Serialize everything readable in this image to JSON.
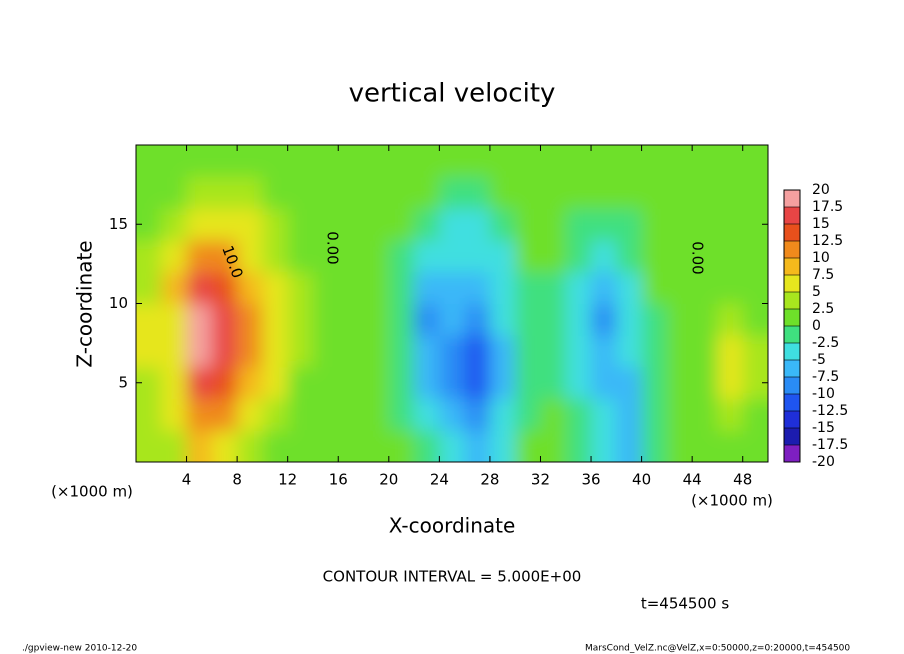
{
  "chart_data": {
    "type": "heatmap",
    "title": "vertical velocity",
    "xlabel": "X-coordinate",
    "ylabel": "Z-coordinate",
    "x_unit": "(×1000 m)",
    "x_unit_right": "(×1000 m)",
    "xlim": [
      0,
      50
    ],
    "ylim": [
      0,
      20
    ],
    "xticks": [
      4,
      8,
      12,
      16,
      20,
      24,
      28,
      32,
      36,
      40,
      44,
      48
    ],
    "yticks": [
      5,
      10,
      15
    ],
    "x": [
      1,
      3,
      5,
      7,
      9,
      11,
      13,
      15,
      17,
      19,
      21,
      23,
      25,
      27,
      29,
      31,
      33,
      35,
      37,
      39,
      41,
      43,
      45,
      47,
      49
    ],
    "y": [
      1,
      3,
      5,
      7,
      9,
      11,
      13,
      15,
      17,
      19
    ],
    "z": [
      [
        3,
        4,
        8,
        6,
        4,
        2,
        1,
        0,
        0,
        1,
        0,
        -2,
        -4,
        -6,
        -3,
        0,
        1,
        -1,
        -3,
        -6,
        -2,
        0,
        1,
        2,
        1
      ],
      [
        3,
        5,
        12,
        10,
        6,
        4,
        2,
        0,
        1,
        1,
        -1,
        -4,
        -6,
        -9,
        -4,
        -1,
        0,
        -2,
        -5,
        -7,
        -2,
        0,
        1,
        3,
        2
      ],
      [
        4,
        6,
        15,
        14,
        9,
        5,
        2,
        1,
        1,
        1,
        -2,
        -6,
        -9,
        -12,
        -6,
        -2,
        -1,
        -3,
        -6,
        -6,
        -1,
        0,
        2,
        5,
        3
      ],
      [
        5,
        7,
        18,
        16,
        10,
        6,
        3,
        1,
        1,
        1,
        -2,
        -7,
        -8,
        -11,
        -6,
        -2,
        -1,
        -4,
        -7,
        -5,
        -1,
        0,
        2,
        5,
        3
      ],
      [
        5,
        7,
        19,
        15,
        10,
        6,
        3,
        1,
        1,
        1,
        -2,
        -8,
        -7,
        -9,
        -5,
        -1,
        -1,
        -4,
        -8,
        -4,
        -1,
        0,
        1,
        4,
        2
      ],
      [
        4,
        8,
        15,
        13,
        8,
        5,
        3,
        1,
        1,
        1,
        -2,
        -6,
        -7,
        -7,
        -4,
        -1,
        -1,
        -3,
        -7,
        -3,
        0,
        0,
        1,
        2,
        2
      ],
      [
        3,
        6,
        10,
        10,
        7,
        4,
        2,
        1,
        0,
        1,
        -1,
        -4,
        -5,
        -5,
        -3,
        0,
        0,
        -2,
        -5,
        -2,
        0,
        0,
        1,
        1,
        1
      ],
      [
        2,
        4,
        6,
        6,
        5,
        3,
        2,
        0,
        0,
        1,
        0,
        -2,
        -3,
        -4,
        -2,
        0,
        0,
        -1,
        -2,
        -1,
        0,
        0,
        1,
        1,
        1
      ],
      [
        1,
        2,
        3,
        4,
        3,
        2,
        1,
        0,
        0,
        1,
        1,
        0,
        -1,
        -1,
        0,
        1,
        1,
        0,
        0,
        0,
        0,
        0,
        1,
        1,
        1
      ],
      [
        1,
        1,
        1,
        2,
        2,
        1,
        1,
        0,
        0,
        1,
        1,
        1,
        1,
        1,
        1,
        1,
        1,
        1,
        1,
        1,
        1,
        1,
        1,
        1,
        1
      ]
    ],
    "levels": [
      -20,
      -17.5,
      -15,
      -12.5,
      -10,
      -7.5,
      -5,
      -2.5,
      0,
      2.5,
      5,
      7.5,
      10,
      12.5,
      15,
      17.5,
      20
    ],
    "colors": [
      "#7e1fc1",
      "#1c1caf",
      "#1f2fd8",
      "#1f55f0",
      "#2a8cf5",
      "#3ab8f8",
      "#3fdfe0",
      "#3fe07f",
      "#6ee02a",
      "#a8e61e",
      "#e6e61e",
      "#f5b91c",
      "#f08a1c",
      "#e8501c",
      "#e84545",
      "#f5a0a0"
    ],
    "annotations": [
      "10.0",
      "0.00",
      "0.00"
    ],
    "contour_interval": "CONTOUR INTERVAL = 5.000E+00",
    "time_label": "t=454500 s",
    "footer_left": "./gpview-new  2010-12-20",
    "footer_right": "MarsCond_VelZ.nc@VelZ,x=0:50000,z=0:20000,t=454500"
  }
}
